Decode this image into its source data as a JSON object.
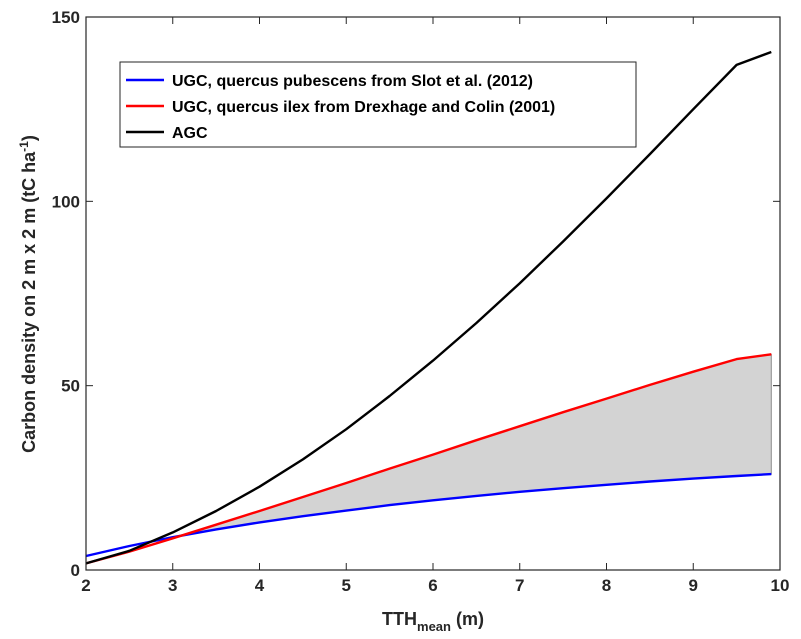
{
  "chart_data": {
    "type": "line",
    "xlabel": {
      "main": "TTH",
      "sub": "mean",
      "unit": " (m)"
    },
    "ylabel": {
      "main": "Carbon density on  2 m x  2 m (tC ha",
      "sup": "-1",
      "close": ")"
    },
    "xlim": [
      2,
      10
    ],
    "ylim": [
      0,
      150
    ],
    "xticks": [
      2,
      3,
      4,
      5,
      6,
      7,
      8,
      9,
      10
    ],
    "yticks": [
      0,
      50,
      100,
      150
    ],
    "grid": false,
    "legend_position": "top-left",
    "x": [
      2.0,
      2.5,
      3.0,
      3.5,
      4.0,
      4.5,
      5.0,
      5.5,
      6.0,
      6.5,
      7.0,
      7.5,
      8.0,
      8.5,
      9.0,
      9.5,
      9.9
    ],
    "series": [
      {
        "name": "UGC, quercus pubescens from Slot et al. (2012)",
        "color": "#0000ff",
        "values": [
          3.8,
          6.5,
          8.9,
          11.0,
          12.9,
          14.6,
          16.1,
          17.6,
          18.9,
          20.1,
          21.2,
          22.2,
          23.1,
          24.0,
          24.8,
          25.5,
          26.0
        ]
      },
      {
        "name": "UGC, quercus ilex from Drexhage and Colin (2001)",
        "color": "#ff0000",
        "values": [
          1.8,
          5.0,
          8.6,
          12.3,
          16.0,
          19.8,
          23.6,
          27.5,
          31.3,
          35.2,
          39.0,
          42.8,
          46.5,
          50.2,
          53.8,
          57.2,
          58.5
        ]
      },
      {
        "name": "AGC",
        "color": "#000000",
        "values": [
          1.8,
          5.2,
          10.2,
          16.0,
          22.6,
          30.0,
          38.2,
          47.2,
          56.8,
          67.0,
          77.8,
          89.1,
          100.8,
          112.8,
          125.0,
          137.0,
          140.5
        ]
      }
    ],
    "shaded_region": {
      "between": [
        "UGC, quercus pubescens from Slot et al. (2012)",
        "UGC, quercus ilex from Drexhage and Colin (2001)"
      ],
      "from_x": 3.1,
      "color": "#d3d3d3"
    }
  }
}
